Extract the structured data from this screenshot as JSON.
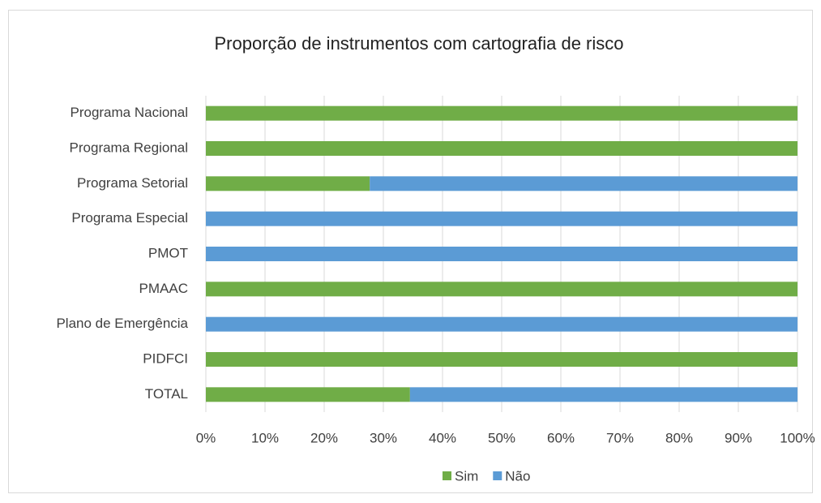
{
  "chart_data": {
    "type": "bar",
    "orientation": "horizontal",
    "stacked": true,
    "title": "Proporção de instrumentos com cartografia de risco",
    "categories": [
      "Programa Nacional",
      "Programa Regional",
      "Programa Setorial",
      "Programa Especial",
      "PMOT",
      "PMAAC",
      "Plano de Emergência",
      "PIDFCI",
      "TOTAL"
    ],
    "series": [
      {
        "name": "Sim",
        "color": "#70ad47",
        "values": [
          100,
          100,
          27.7,
          0,
          0,
          100,
          0,
          100,
          34.5
        ]
      },
      {
        "name": "Não",
        "color": "#5b9bd5",
        "values": [
          0,
          0,
          72.3,
          100,
          100,
          0,
          100,
          0,
          65.5
        ]
      }
    ],
    "xlim": [
      0,
      100
    ],
    "xticks": [
      {
        "value": 0,
        "label": "0%"
      },
      {
        "value": 10,
        "label": "10%"
      },
      {
        "value": 20,
        "label": "20%"
      },
      {
        "value": 30,
        "label": "30%"
      },
      {
        "value": 40,
        "label": "40%"
      },
      {
        "value": 50,
        "label": "50%"
      },
      {
        "value": 60,
        "label": "60%"
      },
      {
        "value": 70,
        "label": "70%"
      },
      {
        "value": 80,
        "label": "80%"
      },
      {
        "value": 90,
        "label": "90%"
      },
      {
        "value": 100,
        "label": "100%"
      }
    ],
    "grid": true,
    "legend": "bottom"
  }
}
